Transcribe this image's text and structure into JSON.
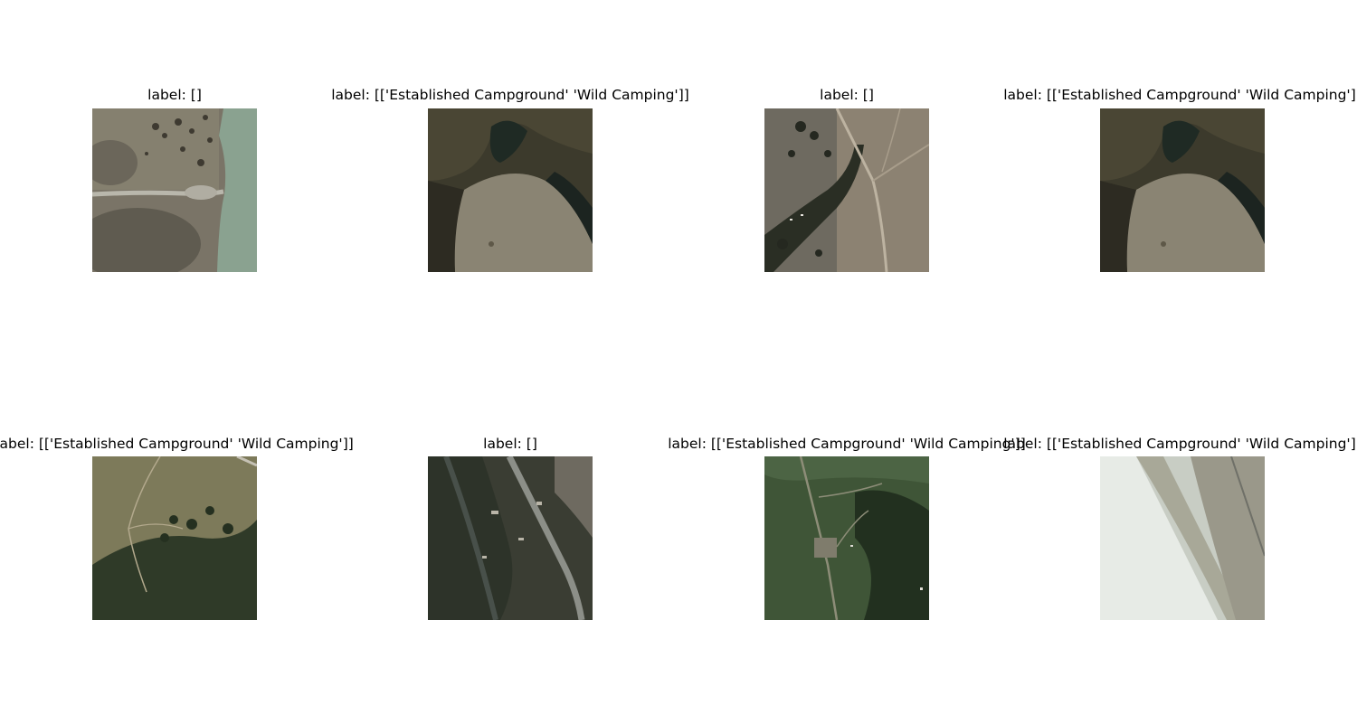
{
  "panels": [
    {
      "title": "label: []",
      "image": "satellite-grassland-river-road"
    },
    {
      "title": "label: [['Established Campground' 'Wild Camping']]",
      "image": "satellite-dark-forest-meadow"
    },
    {
      "title": "label: []",
      "image": "satellite-dry-valley-creek-road"
    },
    {
      "title": "label: [['Established Campground' 'Wild Camping']]",
      "image": "satellite-dark-forest-meadow"
    },
    {
      "title": "label: [['Established Campground' 'Wild Camping']]",
      "image": "satellite-meadow-conifers-trails"
    },
    {
      "title": "label: []",
      "image": "satellite-forest-river-road"
    },
    {
      "title": "label: [['Established Campground' 'Wild Camping']]",
      "image": "satellite-green-forest-campground"
    },
    {
      "title": "label: [['Established Campground' 'Wild Camping']]",
      "image": "satellite-white-sand-river"
    }
  ]
}
